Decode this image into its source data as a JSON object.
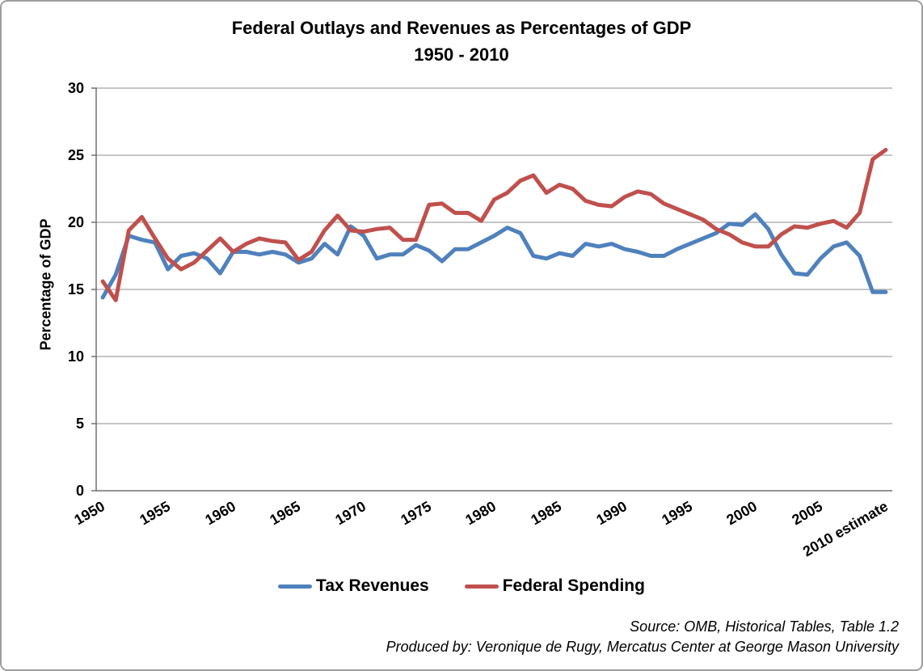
{
  "title": {
    "line1": "Federal Outlays and Revenues as Percentages of GDP",
    "line2": "1950 - 2010"
  },
  "footer": {
    "source": "Source: OMB, Historical Tables, Table 1.2",
    "produced_by": "Produced by: Veronique de Rugy, Mercatus Center at George Mason University"
  },
  "chart_data": {
    "type": "line",
    "title": "Federal Outlays and Revenues as Percentages of GDP",
    "subtitle": "1950 - 2010",
    "xlabel": "",
    "ylabel": "Percentage of GDP",
    "ylim": [
      0,
      30
    ],
    "ytick_interval": 5,
    "ytick_labels": [
      "0",
      "5",
      "10",
      "15",
      "20",
      "25",
      "30"
    ],
    "grid": true,
    "legend_position": "bottom",
    "categories": [
      1950,
      1951,
      1952,
      1953,
      1954,
      1955,
      1956,
      1957,
      1958,
      1959,
      1960,
      1961,
      1962,
      1963,
      1964,
      1965,
      1966,
      1967,
      1968,
      1969,
      1970,
      1971,
      1972,
      1973,
      1974,
      1975,
      1976,
      1977,
      1978,
      1979,
      1980,
      1981,
      1982,
      1983,
      1984,
      1985,
      1986,
      1987,
      1988,
      1989,
      1990,
      1991,
      1992,
      1993,
      1994,
      1995,
      1996,
      1997,
      1998,
      1999,
      2000,
      2001,
      2002,
      2003,
      2004,
      2005,
      2006,
      2007,
      2008,
      2009,
      2010
    ],
    "xticks": [
      {
        "index": 0,
        "label": "1950"
      },
      {
        "index": 5,
        "label": "1955"
      },
      {
        "index": 10,
        "label": "1960"
      },
      {
        "index": 15,
        "label": "1965"
      },
      {
        "index": 20,
        "label": "1970"
      },
      {
        "index": 25,
        "label": "1975"
      },
      {
        "index": 30,
        "label": "1980"
      },
      {
        "index": 35,
        "label": "1985"
      },
      {
        "index": 40,
        "label": "1990"
      },
      {
        "index": 45,
        "label": "1995"
      },
      {
        "index": 50,
        "label": "2000"
      },
      {
        "index": 55,
        "label": "2005"
      },
      {
        "index": 60,
        "label": "2010 estimate"
      }
    ],
    "series": [
      {
        "name": "Tax Revenues",
        "color": "#4F81BD",
        "values": [
          14.4,
          16.1,
          19.0,
          18.7,
          18.5,
          16.5,
          17.5,
          17.7,
          17.3,
          16.2,
          17.8,
          17.8,
          17.6,
          17.8,
          17.6,
          17.0,
          17.3,
          18.4,
          17.6,
          19.7,
          19.0,
          17.3,
          17.6,
          17.6,
          18.3,
          17.9,
          17.1,
          18.0,
          18.0,
          18.5,
          19.0,
          19.6,
          19.2,
          17.5,
          17.3,
          17.7,
          17.5,
          18.4,
          18.2,
          18.4,
          18.0,
          17.8,
          17.5,
          17.5,
          18.0,
          18.4,
          18.8,
          19.2,
          19.9,
          19.8,
          20.6,
          19.5,
          17.6,
          16.2,
          16.1,
          17.3,
          18.2,
          18.5,
          17.5,
          14.8,
          14.8
        ]
      },
      {
        "name": "Federal Spending",
        "color": "#C0504D",
        "values": [
          15.6,
          14.2,
          19.4,
          20.4,
          18.8,
          17.3,
          16.5,
          17.0,
          17.9,
          18.8,
          17.8,
          18.4,
          18.8,
          18.6,
          18.5,
          17.2,
          17.8,
          19.4,
          20.5,
          19.4,
          19.3,
          19.5,
          19.6,
          18.7,
          18.7,
          21.3,
          21.4,
          20.7,
          20.7,
          20.1,
          21.7,
          22.2,
          23.1,
          23.5,
          22.2,
          22.8,
          22.5,
          21.6,
          21.3,
          21.2,
          21.9,
          22.3,
          22.1,
          21.4,
          21.0,
          20.6,
          20.2,
          19.5,
          19.1,
          18.5,
          18.2,
          18.2,
          19.1,
          19.7,
          19.6,
          19.9,
          20.1,
          19.6,
          20.7,
          24.7,
          25.4
        ]
      }
    ],
    "axis_color": "#707070",
    "gridline_color": "#8e8e8e"
  }
}
